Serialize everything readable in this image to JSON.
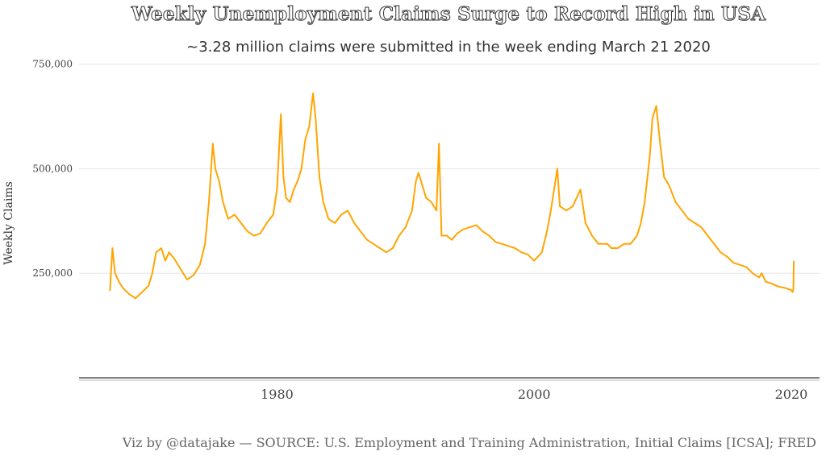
{
  "chart_data": {
    "type": "line",
    "title": "Weekly Unemployment Claims Surge to Record High in USA",
    "subtitle": "~3.28 million claims were submitted in the week ending March 21 2020",
    "xlabel": "",
    "ylabel": "Weekly Claims",
    "caption": "Viz by @datajake — SOURCE: U.S. Employment and Training Administration, Initial Claims [ICSA]; FRED",
    "xlim": [
      1964.6,
      2022.2
    ],
    "ylim": [
      0,
      780000
    ],
    "x_ticks": [
      1980,
      2000,
      2020
    ],
    "x_tick_labels": [
      "1980",
      "2000",
      "2020"
    ],
    "y_ticks": [
      250000,
      500000,
      750000
    ],
    "y_tick_labels": [
      "250,000",
      "500,000",
      "750,000"
    ],
    "grid": "horizontal",
    "legend": "none",
    "line_color": "#FFA500",
    "series": [
      {
        "x": [
          1967.0,
          1967.2,
          1967.4,
          1967.7,
          1968.0,
          1968.5,
          1969.0,
          1969.5,
          1970.0,
          1970.3,
          1970.6,
          1971.0,
          1971.3,
          1971.6,
          1972.0,
          1972.5,
          1973.0,
          1973.5,
          1974.0,
          1974.4,
          1974.7,
          1975.0,
          1975.2,
          1975.5,
          1975.8,
          1976.2,
          1976.7,
          1977.2,
          1977.7,
          1978.2,
          1978.7,
          1979.2,
          1979.7,
          1980.0,
          1980.3,
          1980.5,
          1980.7,
          1981.0,
          1981.3,
          1981.6,
          1981.9,
          1982.2,
          1982.5,
          1982.8,
          1983.0,
          1983.3,
          1983.6,
          1984.0,
          1984.5,
          1985.0,
          1985.5,
          1986.0,
          1986.5,
          1987.0,
          1987.5,
          1988.0,
          1988.5,
          1989.0,
          1989.5,
          1990.0,
          1990.5,
          1990.8,
          1991.0,
          1991.3,
          1991.6,
          1992.0,
          1992.4,
          1992.6,
          1992.8,
          1993.2,
          1993.6,
          1994.0,
          1994.5,
          1995.0,
          1995.5,
          1996.0,
          1996.5,
          1997.0,
          1997.5,
          1998.0,
          1998.5,
          1999.0,
          1999.5,
          2000.0,
          2000.3,
          2000.6,
          2001.0,
          2001.3,
          2001.6,
          2001.8,
          2002.0,
          2002.5,
          2003.0,
          2003.3,
          2003.6,
          2004.0,
          2004.5,
          2005.0,
          2005.5,
          2005.7,
          2006.0,
          2006.5,
          2007.0,
          2007.5,
          2008.0,
          2008.3,
          2008.6,
          2009.0,
          2009.2,
          2009.5,
          2009.8,
          2010.1,
          2010.5,
          2011.0,
          2011.5,
          2012.0,
          2012.5,
          2013.0,
          2013.5,
          2014.0,
          2014.5,
          2015.0,
          2015.5,
          2016.0,
          2016.5,
          2017.0,
          2017.5,
          2017.7,
          2018.0,
          2018.5,
          2019.0,
          2019.5,
          2020.0,
          2020.1,
          2020.17,
          2020.2
        ],
        "y": [
          208000,
          310000,
          250000,
          230000,
          215000,
          200000,
          190000,
          205000,
          220000,
          250000,
          300000,
          310000,
          280000,
          300000,
          285000,
          260000,
          235000,
          245000,
          270000,
          320000,
          420000,
          560000,
          500000,
          470000,
          420000,
          380000,
          390000,
          370000,
          350000,
          340000,
          345000,
          370000,
          390000,
          450000,
          630000,
          480000,
          430000,
          420000,
          450000,
          470000,
          500000,
          570000,
          600000,
          680000,
          620000,
          480000,
          420000,
          380000,
          370000,
          390000,
          400000,
          370000,
          350000,
          330000,
          320000,
          310000,
          300000,
          310000,
          340000,
          360000,
          400000,
          470000,
          490000,
          460000,
          430000,
          420000,
          400000,
          560000,
          340000,
          340000,
          330000,
          345000,
          355000,
          360000,
          365000,
          350000,
          340000,
          325000,
          320000,
          315000,
          310000,
          300000,
          295000,
          280000,
          290000,
          300000,
          350000,
          400000,
          460000,
          500000,
          410000,
          400000,
          410000,
          430000,
          450000,
          370000,
          340000,
          320000,
          320000,
          320000,
          310000,
          310000,
          320000,
          320000,
          340000,
          370000,
          420000,
          530000,
          620000,
          650000,
          560000,
          480000,
          460000,
          420000,
          400000,
          380000,
          370000,
          360000,
          340000,
          320000,
          300000,
          290000,
          275000,
          270000,
          265000,
          250000,
          240000,
          250000,
          230000,
          225000,
          218000,
          215000,
          210000,
          205000,
          212000,
          280000
        ]
      }
    ]
  }
}
